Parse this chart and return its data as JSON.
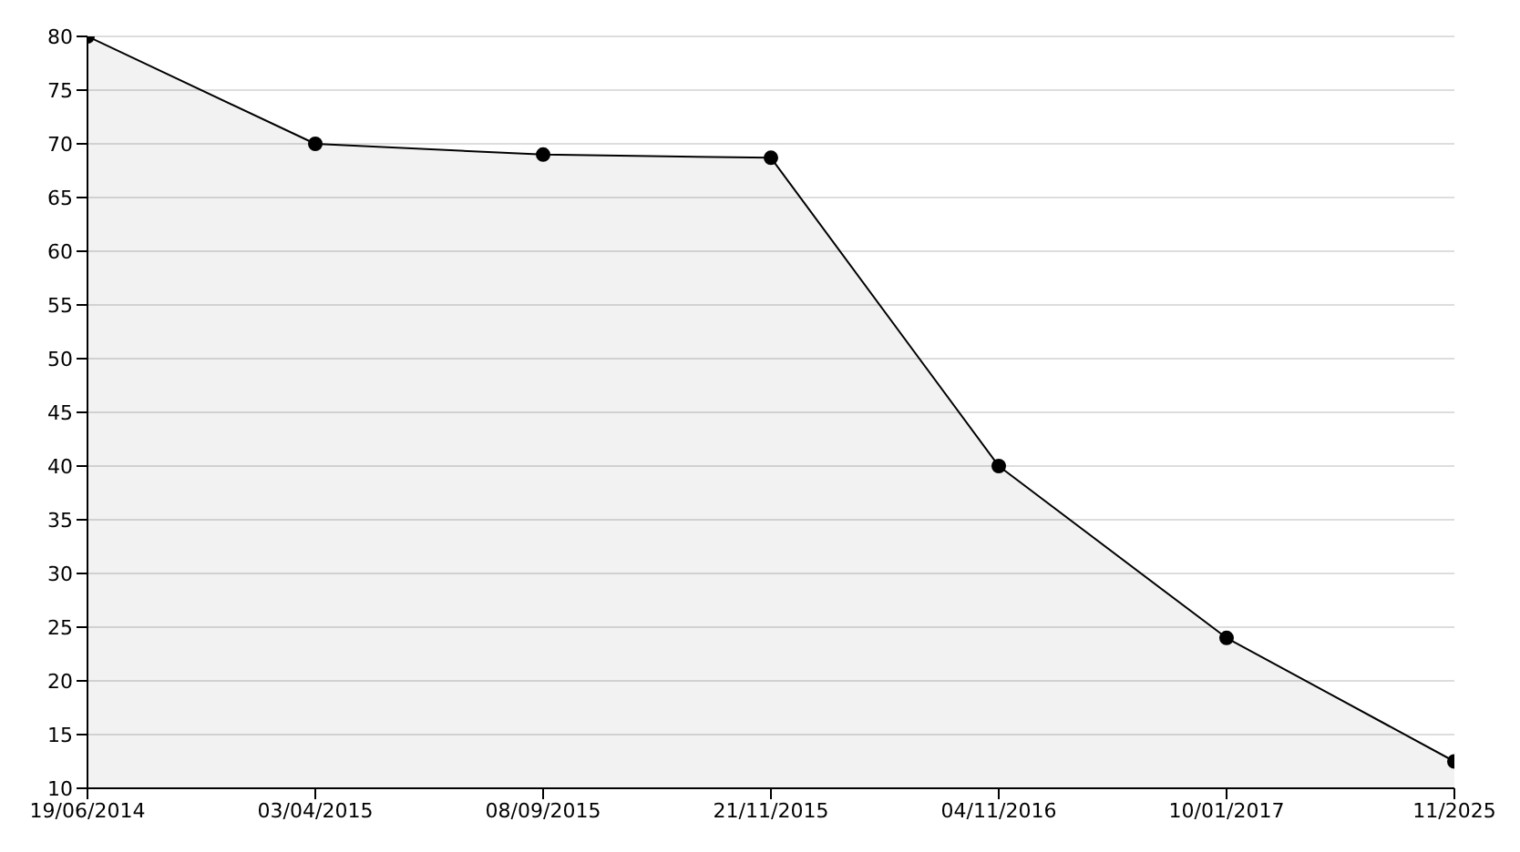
{
  "chart_data": {
    "type": "area",
    "categories": [
      "19/06/2014",
      "03/04/2015",
      "08/09/2015",
      "21/11/2015",
      "04/11/2016",
      "10/01/2017",
      "11/2025"
    ],
    "series": [
      {
        "color": "#000000",
        "values": [
          80,
          70,
          69,
          68.7,
          40,
          24,
          12.5
        ]
      }
    ],
    "ylim": [
      10,
      80
    ],
    "yticks": [
      10,
      15,
      20,
      25,
      30,
      35,
      40,
      45,
      50,
      55,
      60,
      65,
      70,
      75,
      80
    ],
    "grid": "y",
    "marker": "circle",
    "line_style": "solid"
  }
}
